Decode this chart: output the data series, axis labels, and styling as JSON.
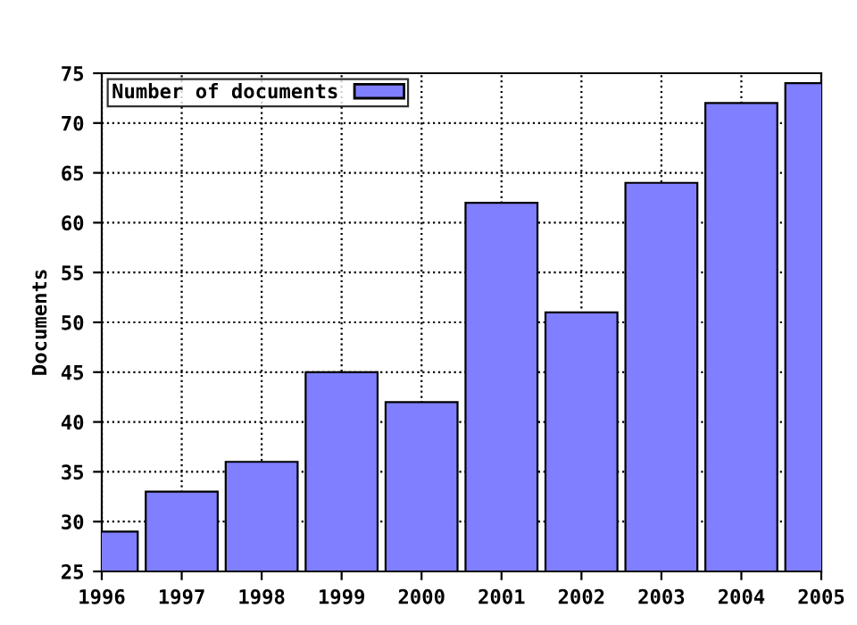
{
  "chart_data": {
    "type": "bar",
    "ylabel": "Documents",
    "x": [
      1996,
      1997,
      1998,
      1999,
      2000,
      2001,
      2002,
      2003,
      2004,
      2005
    ],
    "series": [
      {
        "name": "Number of documents",
        "color": "#7f7fff",
        "values": [
          29,
          33,
          36,
          45,
          42,
          62,
          51,
          64,
          72,
          74
        ]
      }
    ],
    "xlim": [
      1996,
      2005
    ],
    "xticks": [
      1996,
      1997,
      1998,
      1999,
      2000,
      2001,
      2002,
      2003,
      2004,
      2005
    ],
    "ylim": [
      25,
      75
    ],
    "yticks": [
      25,
      30,
      35,
      40,
      45,
      50,
      55,
      60,
      65,
      70,
      75
    ],
    "grid": true,
    "legend": "top left"
  }
}
